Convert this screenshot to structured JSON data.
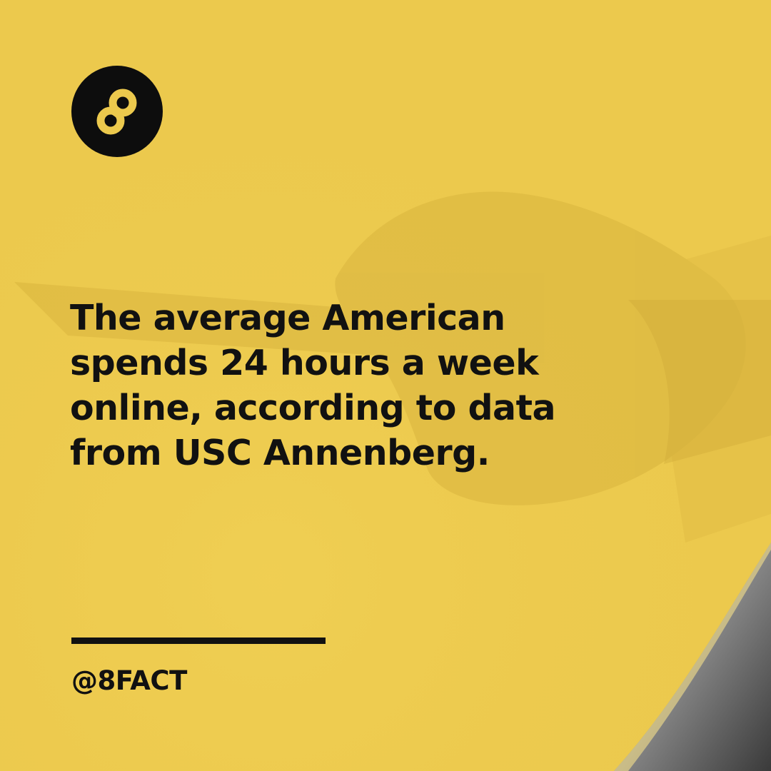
{
  "brand": {
    "logo_icon": "infinity-eight-icon",
    "logo_color": "#0d0d0d",
    "background_color": "#ecc94d"
  },
  "fact": {
    "text": "The average American\nspends 24 hours a week\nonline, according to data\nfrom USC Annenberg."
  },
  "footer": {
    "handle": "@8FACT"
  }
}
